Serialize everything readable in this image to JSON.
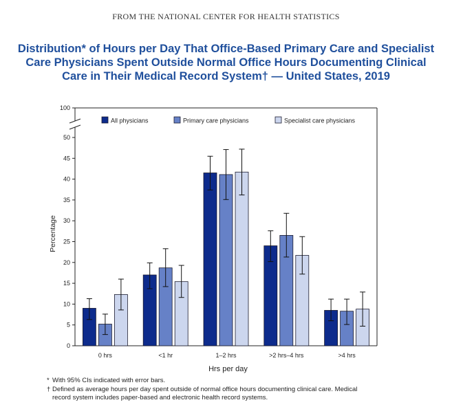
{
  "header": {
    "source_line": "FROM THE NATIONAL CENTER FOR HEALTH STATISTICS"
  },
  "chart_data": {
    "type": "bar",
    "title_lines": [
      "Distribution* of Hours per Day That Office-Based Primary Care and Specialist",
      "Care Physicians Spent Outside Normal Office Hours Documenting Clinical",
      "Care in Their Medical Record System† — United States, 2019"
    ],
    "xlabel": "Hrs per day",
    "ylabel": "Percentage",
    "ylim": [
      0,
      50
    ],
    "y_ticks": [
      "0",
      "5",
      "10",
      "15",
      "20",
      "25",
      "30",
      "35",
      "40",
      "45",
      "50"
    ],
    "y_break_tick": "100",
    "axis_break": true,
    "grid": false,
    "legend_position": "top-right",
    "categories": [
      "0 hrs",
      "<1 hr",
      "1–2 hrs",
      ">2 hrs–4 hrs",
      ">4 hrs"
    ],
    "series": [
      {
        "name": "All physicians",
        "color": "#0d2b8c",
        "values": [
          9.0,
          17.0,
          41.5,
          24.0,
          8.5
        ],
        "ci_low": [
          6.3,
          13.7,
          37.4,
          20.2,
          6.0
        ],
        "ci_high": [
          11.3,
          19.9,
          45.5,
          27.6,
          11.2
        ]
      },
      {
        "name": "Primary care physicians",
        "color": "#6681c7",
        "values": [
          5.2,
          18.7,
          41.1,
          26.5,
          8.3
        ],
        "ci_low": [
          2.7,
          14.2,
          35.1,
          21.3,
          5.1
        ],
        "ci_high": [
          7.6,
          23.3,
          47.1,
          31.8,
          11.2
        ]
      },
      {
        "name": "Specialist care physicians",
        "color": "#ccd6ee",
        "values": [
          12.3,
          15.4,
          41.7,
          21.7,
          8.8
        ],
        "ci_low": [
          8.6,
          11.6,
          36.2,
          17.2,
          4.7
        ],
        "ci_high": [
          16.0,
          19.3,
          47.2,
          26.2,
          12.9
        ]
      }
    ]
  },
  "footnotes": [
    {
      "symbol": "*",
      "text": "With 95% CIs indicated with error bars."
    },
    {
      "symbol": "†",
      "text": "Defined as average hours per day spent outside of normal office hours documenting clinical care. Medical"
    },
    {
      "symbol": "",
      "text": "record system includes paper-based and electronic health record systems."
    }
  ]
}
